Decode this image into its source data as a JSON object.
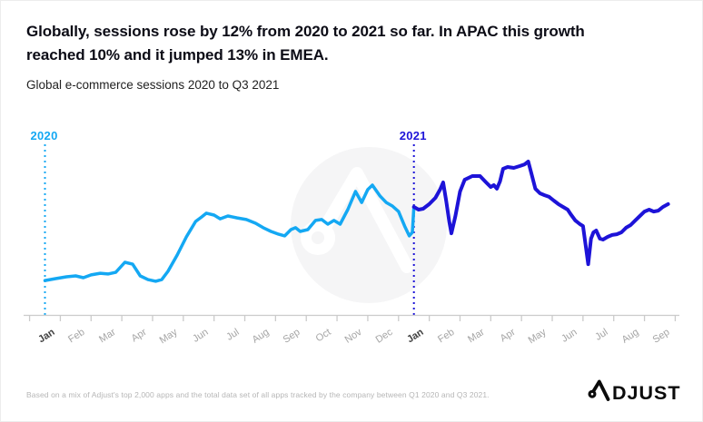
{
  "header": {
    "title_line1": "Globally, sessions rose by 12% from 2020 to 2021 so far. In APAC this growth",
    "title_line2": "reached 10% and it jumped 13% in EMEA.",
    "subtitle": "Global e-commerce sessions 2020 to Q3 2021"
  },
  "footer": {
    "source_note": "Based on a mix of Adjust's top 2,000 apps and the total data set of all apps tracked by the company between Q1 2020 and Q3 2021.",
    "logo_letters": "DJUST",
    "logo_name": "Adjust"
  },
  "colors": {
    "accent_2020": "#14a8f3",
    "accent_2021": "#1d13d8",
    "axis": "#cbcbcb",
    "label_gray": "#a5a5a5",
    "label_dark": "#3f3f3f",
    "watermark": "#f5f5f6",
    "logo_black": "#0b0b0b"
  },
  "chart_data": {
    "type": "line",
    "title": "Global e-commerce sessions 2020 to Q3 2021",
    "xlabel": "",
    "ylabel": "",
    "x_unit": "months since Jan 2020 (fractional = weekly readings)",
    "y_unit": "sessions index, relative chart scale 0-100 (100 = Apr 2021 peak)",
    "grid": false,
    "legend": "none",
    "ylim": [
      0,
      100
    ],
    "xlim_months": [
      0,
      20.3
    ],
    "x_labels": [
      "Jan",
      "Feb",
      "Mar",
      "Apr",
      "May",
      "Jun",
      "Jul",
      "Aug",
      "Sep",
      "Oct",
      "Nov",
      "Dec",
      "Jan",
      "Feb",
      "Mar",
      "Apr",
      "May",
      "Jun",
      "Jul",
      "Aug",
      "Sep"
    ],
    "bold_label_indices": [
      0,
      12
    ],
    "annotations": [
      {
        "label": "2020",
        "x_month": 0,
        "color": "#14a8f3"
      },
      {
        "label": "2021",
        "x_month": 12,
        "color": "#1d13d8"
      }
    ],
    "series": [
      {
        "name": "2020 sessions",
        "color": "#14a8f3",
        "points": [
          [
            0,
            22.9
          ],
          [
            0.35,
            24.1
          ],
          [
            0.7,
            25.3
          ],
          [
            1,
            25.9
          ],
          [
            1.25,
            24.7
          ],
          [
            1.5,
            26.5
          ],
          [
            1.8,
            27.6
          ],
          [
            2.05,
            27.1
          ],
          [
            2.3,
            28.2
          ],
          [
            2.6,
            34.7
          ],
          [
            2.85,
            33.5
          ],
          [
            3.1,
            25.9
          ],
          [
            3.35,
            23.5
          ],
          [
            3.6,
            22.4
          ],
          [
            3.8,
            23.5
          ],
          [
            4,
            28.8
          ],
          [
            4.3,
            39.4
          ],
          [
            4.6,
            51.2
          ],
          [
            4.9,
            61.2
          ],
          [
            5.1,
            64.1
          ],
          [
            5.25,
            66.5
          ],
          [
            5.5,
            65.3
          ],
          [
            5.7,
            62.9
          ],
          [
            5.95,
            64.7
          ],
          [
            6.25,
            63.5
          ],
          [
            6.55,
            62.4
          ],
          [
            6.85,
            60
          ],
          [
            7.1,
            57.1
          ],
          [
            7.35,
            54.7
          ],
          [
            7.6,
            52.9
          ],
          [
            7.8,
            51.8
          ],
          [
            8,
            55.9
          ],
          [
            8.15,
            57.1
          ],
          [
            8.3,
            54.7
          ],
          [
            8.55,
            55.9
          ],
          [
            8.8,
            61.8
          ],
          [
            9,
            62.4
          ],
          [
            9.2,
            59.4
          ],
          [
            9.4,
            61.8
          ],
          [
            9.6,
            59.4
          ],
          [
            9.85,
            68.8
          ],
          [
            10.1,
            80.6
          ],
          [
            10.3,
            73.5
          ],
          [
            10.5,
            81.8
          ],
          [
            10.65,
            84.7
          ],
          [
            10.9,
            77.6
          ],
          [
            11.1,
            73.5
          ],
          [
            11.3,
            71.2
          ],
          [
            11.5,
            67.6
          ],
          [
            11.7,
            58.2
          ],
          [
            11.85,
            51.8
          ],
          [
            11.95,
            54.1
          ],
          [
            12,
            70.6
          ]
        ]
      },
      {
        "name": "2021 sessions",
        "color": "#1d13d8",
        "points": [
          [
            12,
            70.6
          ],
          [
            12.15,
            68.8
          ],
          [
            12.3,
            69.4
          ],
          [
            12.5,
            72.4
          ],
          [
            12.7,
            76.5
          ],
          [
            12.85,
            81.8
          ],
          [
            12.95,
            86.5
          ],
          [
            13.05,
            74.7
          ],
          [
            13.15,
            61.2
          ],
          [
            13.22,
            53.5
          ],
          [
            13.35,
            64.7
          ],
          [
            13.5,
            80.6
          ],
          [
            13.65,
            88.2
          ],
          [
            13.9,
            90.6
          ],
          [
            14.15,
            90.6
          ],
          [
            14.35,
            86.5
          ],
          [
            14.5,
            83.5
          ],
          [
            14.6,
            84.7
          ],
          [
            14.7,
            82.4
          ],
          [
            14.8,
            87.1
          ],
          [
            14.9,
            95.3
          ],
          [
            15.05,
            96.5
          ],
          [
            15.25,
            95.9
          ],
          [
            15.45,
            97.1
          ],
          [
            15.6,
            98.2
          ],
          [
            15.72,
            100
          ],
          [
            15.82,
            92.4
          ],
          [
            15.95,
            82.4
          ],
          [
            16.1,
            79.4
          ],
          [
            16.25,
            78.2
          ],
          [
            16.4,
            77.1
          ],
          [
            16.55,
            74.7
          ],
          [
            16.7,
            72.4
          ],
          [
            16.85,
            70.6
          ],
          [
            17,
            68.8
          ],
          [
            17.1,
            65.9
          ],
          [
            17.25,
            61.8
          ],
          [
            17.4,
            59.4
          ],
          [
            17.5,
            58.2
          ],
          [
            17.58,
            46.5
          ],
          [
            17.67,
            33.5
          ],
          [
            17.76,
            50
          ],
          [
            17.84,
            54.1
          ],
          [
            17.93,
            55.3
          ],
          [
            18.05,
            50
          ],
          [
            18.15,
            49.4
          ],
          [
            18.3,
            51.2
          ],
          [
            18.45,
            52.4
          ],
          [
            18.6,
            52.9
          ],
          [
            18.75,
            54.1
          ],
          [
            18.9,
            57.1
          ],
          [
            19.05,
            58.8
          ],
          [
            19.2,
            61.8
          ],
          [
            19.35,
            64.7
          ],
          [
            19.5,
            67.6
          ],
          [
            19.65,
            68.8
          ],
          [
            19.8,
            67.6
          ],
          [
            19.95,
            68.2
          ],
          [
            20.1,
            70.6
          ],
          [
            20.27,
            72.4
          ]
        ]
      }
    ]
  }
}
